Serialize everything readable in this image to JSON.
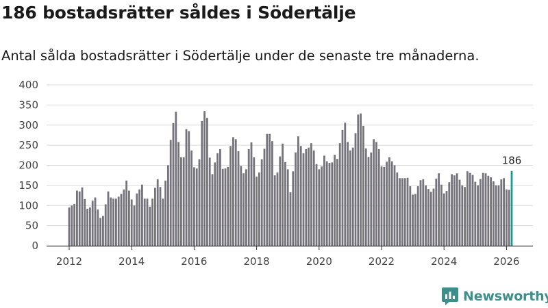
{
  "title": "186 bostadsrätter såldes i Södertälje",
  "subtitle": "Antal sålda bostadsrätter i Södertälje under de senaste tre månaderna.",
  "brand": {
    "name": "Newsworthy",
    "icon": "newsworthy-logo-icon",
    "color": "#3c8f8a"
  },
  "colors": {
    "bar": "#75737b",
    "highlight": "#1c9a90",
    "grid": "#d9d9d9",
    "axis": "#333333"
  },
  "chart_data": {
    "type": "bar",
    "title": "186 bostadsrätter såldes i Södertälje",
    "xlabel": "",
    "ylabel": "",
    "ylim": [
      0,
      400
    ],
    "y_ticks": [
      0,
      50,
      100,
      150,
      200,
      250,
      300,
      350,
      400
    ],
    "x_ticks": [
      "2012",
      "2014",
      "2016",
      "2018",
      "2020",
      "2022",
      "2024",
      "2026"
    ],
    "x_start": "2012-01",
    "frequency": "monthly",
    "grid": true,
    "values": [
      95,
      100,
      104,
      137,
      135,
      145,
      116,
      92,
      95,
      112,
      120,
      90,
      69,
      74,
      103,
      135,
      120,
      117,
      117,
      122,
      129,
      140,
      162,
      137,
      115,
      100,
      130,
      140,
      152,
      117,
      117,
      97,
      117,
      144,
      165,
      146,
      117,
      162,
      200,
      263,
      305,
      333,
      258,
      220,
      220,
      290,
      285,
      237,
      195,
      192,
      215,
      310,
      335,
      318,
      219,
      178,
      207,
      230,
      240,
      191,
      192,
      196,
      248,
      270,
      265,
      235,
      198,
      180,
      190,
      240,
      257,
      220,
      172,
      182,
      215,
      241,
      278,
      278,
      260,
      175,
      182,
      222,
      254,
      208,
      190,
      133,
      185,
      232,
      272,
      248,
      230,
      240,
      244,
      255,
      237,
      203,
      190,
      197,
      224,
      210,
      206,
      207,
      226,
      216,
      255,
      288,
      306,
      258,
      237,
      244,
      280,
      326,
      329,
      298,
      242,
      221,
      232,
      265,
      258,
      240,
      197,
      196,
      209,
      220,
      210,
      200,
      182,
      168,
      168,
      168,
      169,
      148,
      127,
      129,
      148,
      163,
      165,
      150,
      141,
      134,
      142,
      167,
      180,
      152,
      130,
      136,
      158,
      178,
      175,
      180,
      164,
      150,
      146,
      185,
      181,
      176,
      159,
      150,
      166,
      181,
      180,
      174,
      170,
      160,
      150,
      150,
      165,
      168,
      140,
      139,
      186
    ],
    "highlight_last": true,
    "annotations": [
      {
        "text": "186"
      }
    ]
  }
}
